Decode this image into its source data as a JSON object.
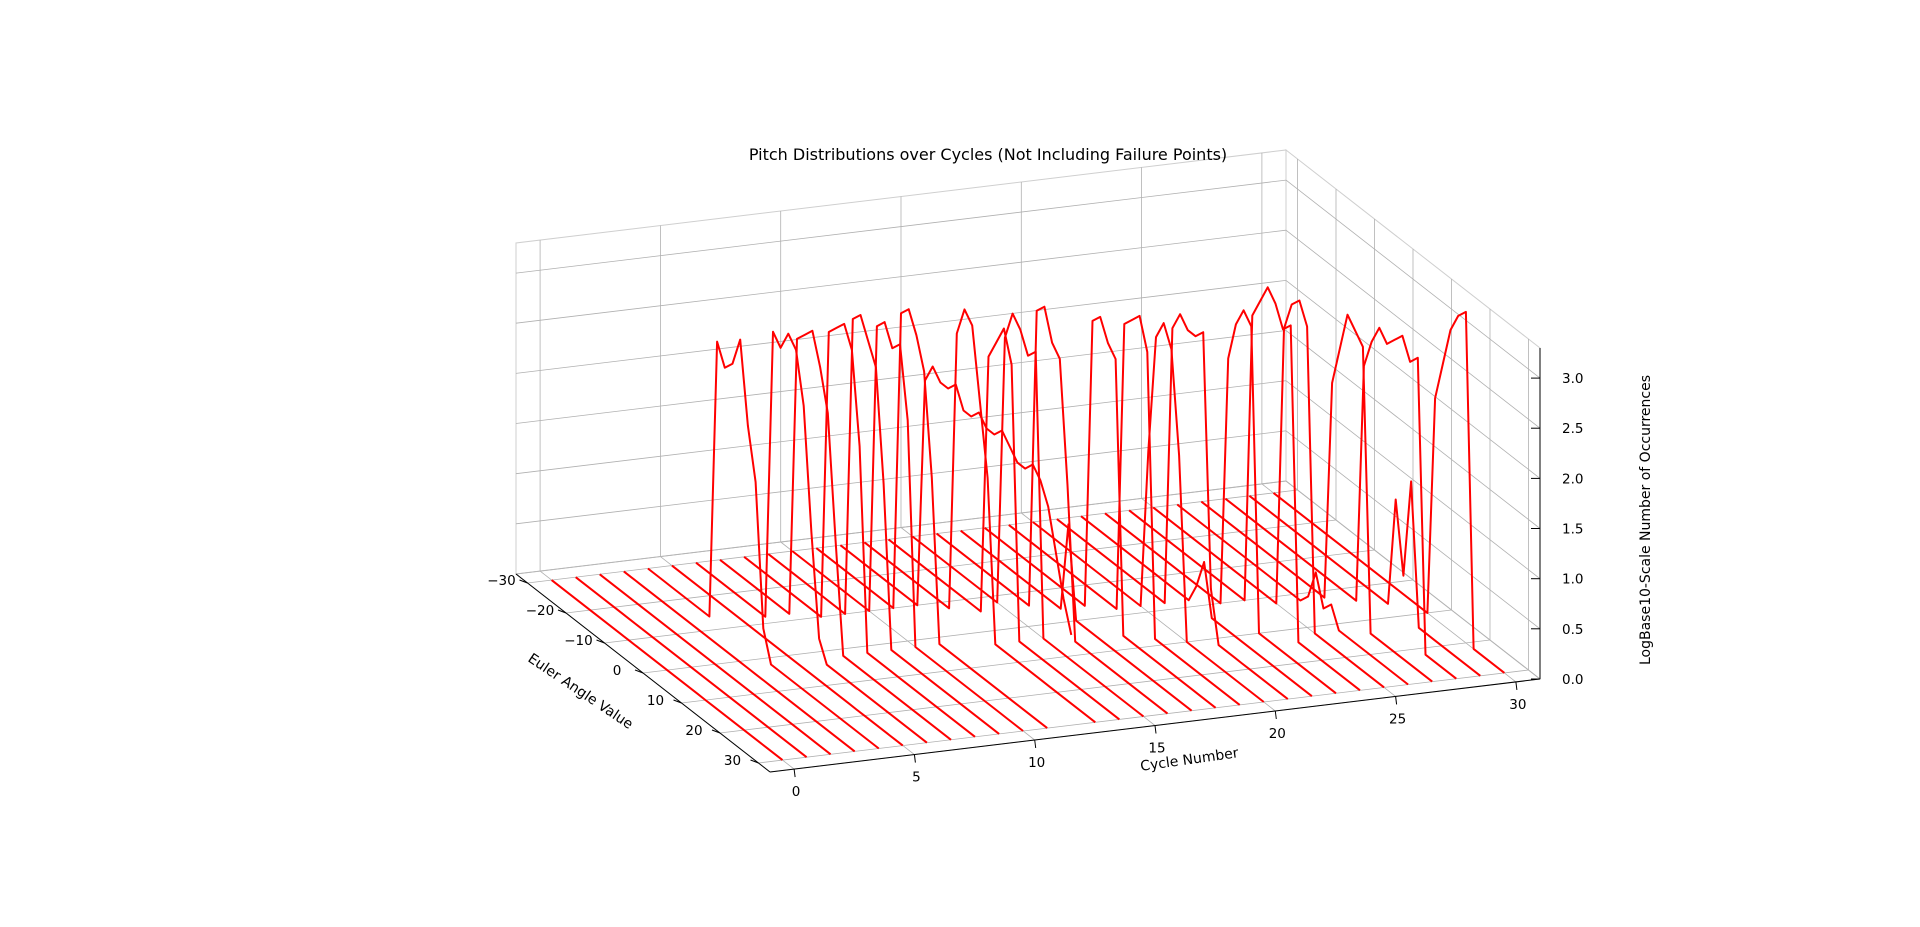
{
  "chart_data": {
    "type": "line",
    "projection": "3d",
    "title": "Pitch Distributions over Cycles (Not Including Failure Points)",
    "xlabel": "Euler Angle Value",
    "ylabel": "Cycle Number",
    "zlabel": "LogBase10-Scale Number of Occurrences",
    "xlim": [
      -33,
      33
    ],
    "ylim": [
      -1,
      31
    ],
    "zlim": [
      0,
      3.3
    ],
    "x_ticks": [
      -30,
      -20,
      -10,
      0,
      10,
      20,
      30
    ],
    "x_tick_labels": [
      "−30",
      "−20",
      "−10",
      "0",
      "10",
      "20",
      "30"
    ],
    "y_ticks": [
      0,
      5,
      10,
      15,
      20,
      25,
      30
    ],
    "y_tick_labels": [
      "0",
      "5",
      "10",
      "15",
      "20",
      "25",
      "30"
    ],
    "z_ticks": [
      0,
      0.5,
      1,
      1.5,
      2,
      2.5,
      3
    ],
    "z_tick_labels": [
      "0.0",
      "0.5",
      "1.0",
      "1.5",
      "2.0",
      "2.5",
      "3.0"
    ],
    "grid": true,
    "line_color": "#ff0000",
    "angle_values": [
      -30,
      -28,
      -26,
      -24,
      -22,
      -20,
      -18,
      -16,
      -14,
      -12,
      -10,
      -8,
      -6,
      -4,
      -2,
      0,
      2,
      4,
      6,
      8,
      10,
      12,
      14,
      16,
      18,
      20,
      22,
      24,
      26,
      28,
      30
    ],
    "series": [
      {
        "cycle": 0,
        "values": [
          0,
          0,
          0,
          0,
          0,
          0,
          0,
          0,
          0,
          0,
          0,
          0,
          0,
          0,
          0,
          0,
          0,
          0,
          0,
          0,
          0,
          0,
          0,
          0,
          0,
          0,
          0,
          0,
          0,
          0,
          0
        ]
      },
      {
        "cycle": 1,
        "values": [
          0,
          0,
          0,
          0,
          0,
          0,
          0,
          0,
          0,
          0,
          0,
          0,
          0,
          0,
          0,
          0,
          0,
          0,
          0,
          0,
          0,
          0,
          0,
          0,
          0,
          0,
          0,
          0,
          0,
          0,
          0
        ]
      },
      {
        "cycle": 2,
        "values": [
          0,
          0,
          0,
          0,
          0,
          0,
          0,
          0,
          0,
          0,
          0,
          0,
          0,
          0,
          0,
          0,
          0,
          0,
          0,
          0,
          0,
          0,
          0,
          0,
          0,
          0,
          0,
          0,
          0,
          0,
          0
        ]
      },
      {
        "cycle": 3,
        "values": [
          0,
          0,
          0,
          0,
          0,
          0,
          0,
          0,
          0,
          0,
          0,
          0,
          0,
          0,
          0,
          0,
          0,
          0,
          0,
          0,
          0,
          0,
          0,
          0,
          0,
          0,
          0,
          0,
          0,
          0,
          0
        ]
      },
      {
        "cycle": 4,
        "values": [
          0,
          0,
          0,
          0,
          0,
          0,
          0,
          0,
          0,
          2.8,
          2.6,
          2.7,
          3.0,
          2.2,
          1.7,
          0.3,
          0,
          0,
          0,
          0,
          0,
          0,
          0,
          0,
          0,
          0,
          0,
          0,
          0,
          0,
          0
        ]
      },
      {
        "cycle": 5,
        "values": [
          0,
          0,
          0,
          0,
          0,
          0,
          0,
          0,
          0,
          0,
          0,
          0,
          0,
          0,
          0,
          0,
          0,
          0,
          0,
          0,
          0,
          0,
          0,
          0,
          0,
          0,
          0,
          0,
          0,
          0,
          0
        ]
      },
      {
        "cycle": 6,
        "values": [
          0,
          0,
          0,
          0,
          0,
          0,
          0,
          0,
          0,
          0,
          2.9,
          2.8,
          3.0,
          2.9,
          2.4,
          1.2,
          0.2,
          0,
          0,
          0,
          0,
          0,
          0,
          0,
          0,
          0,
          0,
          0,
          0,
          0,
          0
        ]
      },
      {
        "cycle": 7,
        "values": [
          0,
          0,
          0,
          0,
          0,
          0,
          0,
          0,
          0,
          0,
          2.8,
          2.9,
          3.0,
          2.7,
          2.3,
          1.1,
          0,
          0,
          0,
          0,
          0,
          0,
          0,
          0,
          0,
          0,
          0,
          0,
          0,
          0,
          0
        ]
      },
      {
        "cycle": 8,
        "values": [
          0,
          0,
          0,
          0,
          0,
          0,
          0,
          0,
          0,
          0,
          0,
          2.9,
          3.0,
          3.1,
          2.9,
          2.0,
          0,
          0,
          0,
          0,
          0,
          0,
          0,
          0,
          0,
          0,
          0,
          0,
          0,
          0,
          0
        ]
      },
      {
        "cycle": 9,
        "values": [
          0,
          0,
          0,
          0,
          0,
          0,
          0,
          0,
          0,
          0,
          0,
          3.0,
          3.1,
          2.9,
          2.7,
          1.6,
          0,
          0,
          0,
          0,
          0,
          0,
          0,
          0,
          0,
          0,
          0,
          0,
          0,
          0,
          0
        ]
      },
      {
        "cycle": 10,
        "values": [
          0,
          0,
          0,
          0,
          0,
          0,
          0,
          0,
          0,
          0,
          0,
          2.9,
          3.0,
          2.8,
          2.9,
          2.2,
          0,
          0,
          0,
          0,
          0,
          0,
          0,
          0,
          0,
          0,
          0,
          0,
          0,
          0,
          0
        ]
      },
      {
        "cycle": 11,
        "values": [
          0,
          0,
          0,
          0,
          0,
          0,
          0,
          0,
          0,
          0,
          0,
          3.0,
          3.1,
          2.9,
          2.6,
          1.6,
          0,
          0,
          0,
          0,
          0,
          0,
          0,
          0,
          0,
          0,
          0,
          0,
          0,
          0,
          0
        ]
      },
      {
        "cycle": 12,
        "values": [
          0,
          0,
          0,
          0,
          0,
          0,
          0,
          0,
          0,
          0,
          0,
          2.3,
          2.5,
          2.4,
          2.4,
          2.5,
          2.3,
          2.3,
          2.4,
          2.3,
          2.3,
          2.4,
          2.3,
          2.2,
          2.2,
          2.3,
          2.2,
          2.0,
          1.6,
          1.2,
          0.9
        ]
      },
      {
        "cycle": 13,
        "values": [
          0,
          0,
          0,
          0,
          0,
          0,
          0,
          0,
          0,
          0,
          0,
          0,
          2.8,
          3.1,
          3.0,
          2.3,
          1.6,
          0,
          0,
          0,
          0,
          0,
          0,
          0,
          0,
          0,
          0,
          0,
          0,
          0,
          0
        ]
      },
      {
        "cycle": 14,
        "values": [
          0,
          0,
          0,
          0,
          0,
          0,
          0,
          0,
          0,
          0,
          0,
          0,
          0,
          2.6,
          2.8,
          3.0,
          2.7,
          0,
          0,
          0,
          0,
          0,
          0,
          0,
          0,
          0,
          0,
          0,
          0,
          0,
          0
        ]
      },
      {
        "cycle": 15,
        "values": [
          0,
          0,
          0,
          0,
          0,
          0,
          0,
          0,
          0,
          0,
          0,
          0,
          2.7,
          3.0,
          2.9,
          2.7,
          2.8,
          0,
          0,
          0,
          0,
          0,
          0,
          0,
          0,
          0,
          0,
          0,
          0,
          0,
          0
        ]
      },
      {
        "cycle": 16,
        "values": [
          0,
          0,
          0,
          0,
          0,
          0,
          0,
          0,
          0,
          0,
          0,
          0,
          0,
          3.0,
          3.1,
          2.8,
          2.7,
          1.5,
          0,
          0,
          0,
          0,
          0,
          0,
          0,
          0,
          0,
          0,
          0,
          0,
          0
        ]
      },
      {
        "cycle": 17,
        "values": [
          0,
          0,
          0,
          0,
          0,
          0,
          0,
          0,
          0,
          0,
          0,
          0,
          0,
          0,
          0.9,
          0,
          0,
          0,
          0,
          0,
          0,
          0,
          0,
          0,
          0,
          0,
          0,
          0,
          0,
          0,
          0
        ]
      },
      {
        "cycle": 18,
        "values": [
          0,
          0,
          0,
          0,
          0,
          0,
          0,
          0,
          0,
          0,
          0,
          0,
          0,
          0,
          2.9,
          3.0,
          2.8,
          2.7,
          0,
          0,
          0,
          0,
          0,
          0,
          0,
          0,
          0,
          0,
          0,
          0,
          0
        ]
      },
      {
        "cycle": 19,
        "values": [
          0,
          0,
          0,
          0,
          0,
          0,
          0,
          0,
          0,
          0,
          0,
          0,
          0,
          0,
          0,
          2.9,
          3.0,
          3.1,
          2.8,
          0,
          0,
          0,
          0,
          0,
          0,
          0,
          0,
          0,
          0,
          0,
          0
        ]
      },
      {
        "cycle": 20,
        "values": [
          0,
          0,
          0,
          0,
          0,
          0,
          0,
          0,
          0,
          0,
          0,
          0,
          0,
          0,
          0,
          1.6,
          2.8,
          3.0,
          2.8,
          1.8,
          0,
          0,
          0,
          0,
          0,
          0,
          0,
          0,
          0,
          0,
          0
        ]
      },
      {
        "cycle": 21,
        "values": [
          0,
          0,
          0,
          0,
          0,
          0,
          0,
          0,
          0,
          0,
          0,
          0,
          0,
          0,
          0,
          2.8,
          3.0,
          2.9,
          2.9,
          3.0,
          0.5,
          0,
          0,
          0,
          0,
          0,
          0,
          0,
          0,
          0,
          0
        ]
      },
      {
        "cycle": 22,
        "values": [
          0,
          0,
          0,
          0,
          0,
          0,
          0,
          0,
          0,
          0,
          0,
          0,
          0,
          0,
          0,
          0.2,
          0.5,
          0,
          0,
          0,
          0,
          0,
          0,
          0,
          0,
          0,
          0,
          0,
          0,
          0,
          0
        ]
      },
      {
        "cycle": 23,
        "values": [
          0,
          0,
          0,
          0,
          0,
          0,
          0,
          0,
          0,
          0,
          0,
          0,
          0,
          0,
          0,
          0,
          2.5,
          2.9,
          3.1,
          3.0,
          0,
          0,
          0,
          0,
          0,
          0,
          0,
          0,
          0,
          0,
          0
        ]
      },
      {
        "cycle": 24,
        "values": [
          0,
          0,
          0,
          0,
          0,
          0,
          0,
          0,
          0,
          0,
          0,
          0,
          0,
          0,
          0,
          0,
          2.9,
          3.1,
          3.3,
          3.2,
          3.0,
          3.1,
          0,
          0,
          0,
          0,
          0,
          0,
          0,
          0,
          0
        ]
      },
      {
        "cycle": 25,
        "values": [
          0,
          0,
          0,
          0,
          0,
          0,
          0,
          0,
          0,
          0,
          0,
          0,
          0,
          0,
          0,
          0,
          0,
          2.8,
          3.1,
          3.2,
          3.0,
          0,
          0,
          0,
          0,
          0,
          0,
          0,
          0,
          0,
          0
        ]
      },
      {
        "cycle": 26,
        "values": [
          0,
          0,
          0,
          0,
          0,
          0,
          0,
          0,
          0,
          0,
          0,
          0,
          0,
          0,
          0,
          0,
          0,
          0.1,
          0.4,
          0.1,
          0.2,
          0,
          0,
          0,
          0,
          0,
          0,
          0,
          0,
          0,
          0
        ]
      },
      {
        "cycle": 27,
        "values": [
          0,
          0,
          0,
          0,
          0,
          0,
          0,
          0,
          0,
          0,
          0,
          0,
          0,
          0,
          0,
          0,
          0,
          2.2,
          2.6,
          3.0,
          2.9,
          2.8,
          0,
          0,
          0,
          0,
          0,
          0,
          0,
          0,
          0
        ]
      },
      {
        "cycle": 28,
        "values": [
          0,
          0,
          0,
          0,
          0,
          0,
          0,
          0,
          0,
          0,
          0,
          0,
          0,
          0,
          0,
          0,
          0,
          0,
          2.4,
          2.7,
          2.9,
          2.8,
          2.9,
          3.0,
          2.8,
          2.9,
          0,
          0,
          0,
          0,
          0
        ]
      },
      {
        "cycle": 29,
        "values": [
          0,
          0,
          0,
          0,
          0,
          0,
          0,
          0,
          0,
          0,
          0,
          0,
          0,
          0,
          0,
          0,
          0,
          0,
          0,
          1.1,
          0.4,
          1.4,
          0,
          0,
          0,
          0,
          0,
          0,
          0,
          0,
          0
        ]
      },
      {
        "cycle": 30,
        "values": [
          0,
          0,
          0,
          0,
          0,
          0,
          0,
          0,
          0,
          0,
          0,
          0,
          0,
          0,
          0,
          0,
          0,
          0,
          0,
          0,
          0,
          2.2,
          2.6,
          3.0,
          3.2,
          3.3,
          0,
          0,
          0,
          0,
          0
        ]
      }
    ]
  }
}
